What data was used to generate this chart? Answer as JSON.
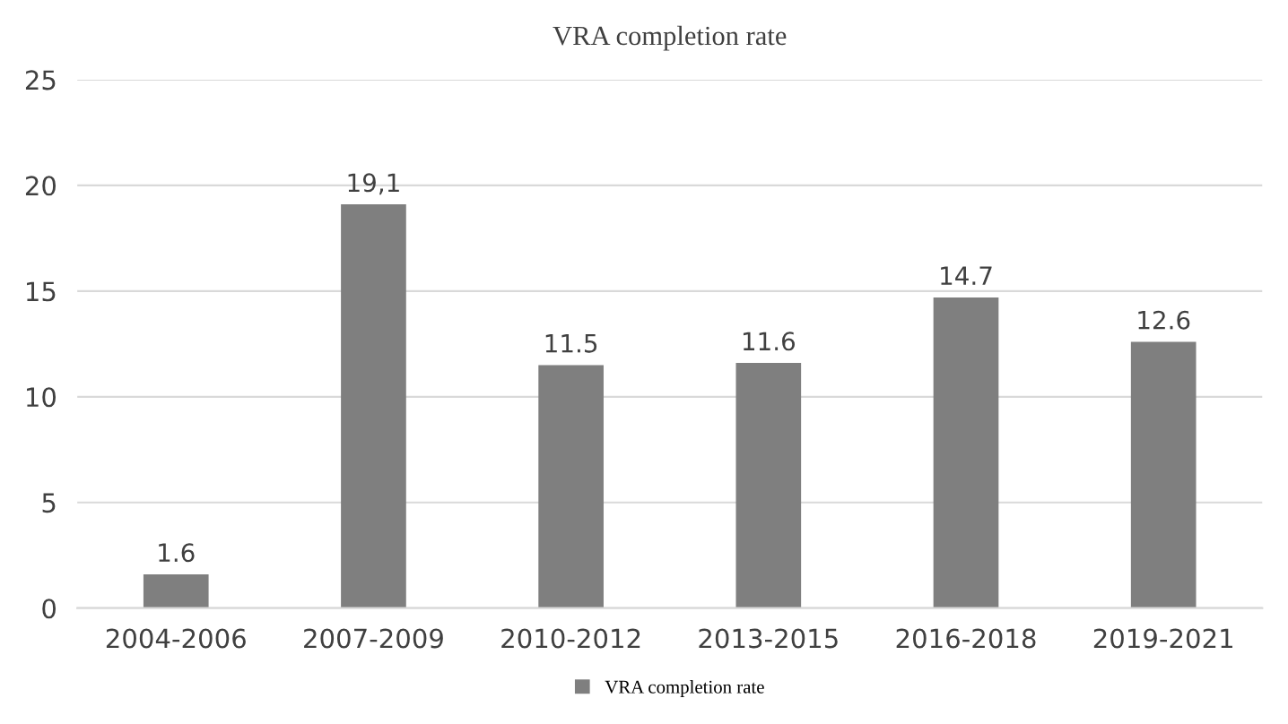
{
  "chart_data": {
    "type": "bar",
    "title": "VRA completion rate",
    "categories": [
      "2004-2006",
      "2007-2009",
      "2010-2012",
      "2013-2015",
      "2016-2018",
      "2019-2021"
    ],
    "series": [
      {
        "name": "VRA completion rate",
        "color": "#7f7f7f",
        "values": [
          1.6,
          19.1,
          11.5,
          11.6,
          14.7,
          12.6
        ],
        "value_labels": [
          "1.6",
          "19,1",
          "11.5",
          "11.6",
          "14.7",
          "12.6"
        ]
      }
    ],
    "ylim": [
      0,
      25
    ],
    "yticks": [
      0,
      5,
      10,
      15,
      20,
      25
    ],
    "grid": "y",
    "legend": "bottom"
  }
}
